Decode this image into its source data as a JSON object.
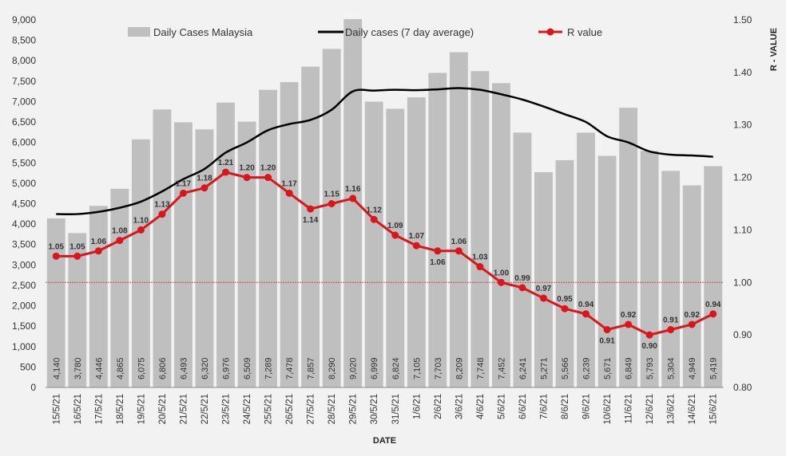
{
  "chart_data": {
    "type": "bar+line",
    "xlabel": "DATE",
    "ylabel_right": "R - VALUE",
    "ylim_left": [
      0,
      9000
    ],
    "ylim_right": [
      0.8,
      1.5
    ],
    "categories": [
      "15/5/21",
      "16/5/21",
      "17/5/21",
      "18/5/21",
      "19/5/21",
      "20/5/21",
      "21/5/21",
      "22/5/21",
      "23/5/21",
      "24/5/21",
      "25/5/21",
      "26/5/21",
      "27/5/21",
      "28/5/21",
      "29/5/21",
      "30/5/21",
      "31/5/21",
      "1/6/21",
      "2/6/21",
      "3/6/21",
      "4/6/21",
      "5/6/21",
      "6/6/21",
      "7/6/21",
      "8/6/21",
      "9/6/21",
      "10/6/21",
      "11/6/21",
      "12/6/21",
      "13/6/21",
      "14/6/21",
      "15/6/21"
    ],
    "left_ticks": [
      "0",
      "500",
      "1,000",
      "1,500",
      "2,000",
      "2,500",
      "3,000",
      "3,500",
      "4,000",
      "4,500",
      "5,000",
      "5,500",
      "6,000",
      "6,500",
      "7,000",
      "7,500",
      "8,000",
      "8,500",
      "9,000"
    ],
    "right_ticks": [
      "0.80",
      "0.90",
      "1.00",
      "1.10",
      "1.20",
      "1.30",
      "1.40",
      "1.50"
    ],
    "series": [
      {
        "name": "Daily Cases Malaysia",
        "type": "bar",
        "color": "#bfbfbf",
        "values": [
          4140,
          3780,
          4446,
          4865,
          6075,
          6806,
          6493,
          6320,
          6976,
          6509,
          7289,
          7478,
          7857,
          8290,
          9020,
          6999,
          6824,
          7105,
          7703,
          8209,
          7748,
          7452,
          6241,
          5271,
          5566,
          6239,
          5671,
          6849,
          5793,
          5304,
          4949,
          5419
        ],
        "labels": [
          "4,140",
          "3,780",
          "4,446",
          "4,865",
          "6,075",
          "6,806",
          "6,493",
          "6,320",
          "6,976",
          "6,509",
          "7,289",
          "7,478",
          "7,857",
          "8,290",
          "9,020",
          "6,999",
          "6,824",
          "7,105",
          "7,703",
          "8,209",
          "7,748",
          "7,452",
          "6,241",
          "5,271",
          "5,566",
          "6,239",
          "5,671",
          "6,849",
          "5,793",
          "5,304",
          "4,949",
          "5,419"
        ]
      },
      {
        "name": "Daily cases (7 day average)",
        "type": "line",
        "color": "#000000",
        "values": [
          4245,
          4245,
          4300,
          4400,
          4550,
          4800,
          5100,
          5350,
          5750,
          6000,
          6300,
          6450,
          6550,
          6800,
          7250,
          7270,
          7290,
          7280,
          7300,
          7330,
          7290,
          7180,
          7050,
          6880,
          6690,
          6500,
          6150,
          6000,
          5780,
          5700,
          5680,
          5650
        ]
      },
      {
        "name": "R value",
        "type": "line",
        "axis": "right",
        "color": "#d9161a",
        "values": [
          1.05,
          1.05,
          1.06,
          1.08,
          1.1,
          1.13,
          1.17,
          1.18,
          1.21,
          1.2,
          1.2,
          1.17,
          1.14,
          1.15,
          1.16,
          1.12,
          1.09,
          1.07,
          1.06,
          1.06,
          1.03,
          1.0,
          0.99,
          0.97,
          0.95,
          0.94,
          0.91,
          0.92,
          0.9,
          0.91,
          0.92,
          0.94
        ],
        "labels": [
          "1.05",
          "1.05",
          "1.06",
          "1.08",
          "1.10",
          "1.13",
          "1.17",
          "1.18",
          "1.21",
          "1.20",
          "1.20",
          "1.17",
          "1.14",
          "1.15",
          "1.16",
          "1.12",
          "1.09",
          "1.07",
          "1.06",
          "1.06",
          "1.03",
          "1.00",
          "0.99",
          "0.97",
          "0.95",
          "0.94",
          "0.91",
          "0.92",
          "0.90",
          "0.91",
          "0.92",
          "0.94"
        ]
      }
    ],
    "reference_line": {
      "axis": "right",
      "value": 1.0,
      "color": "#c0504d"
    },
    "grid": false,
    "legend_position": "top"
  }
}
